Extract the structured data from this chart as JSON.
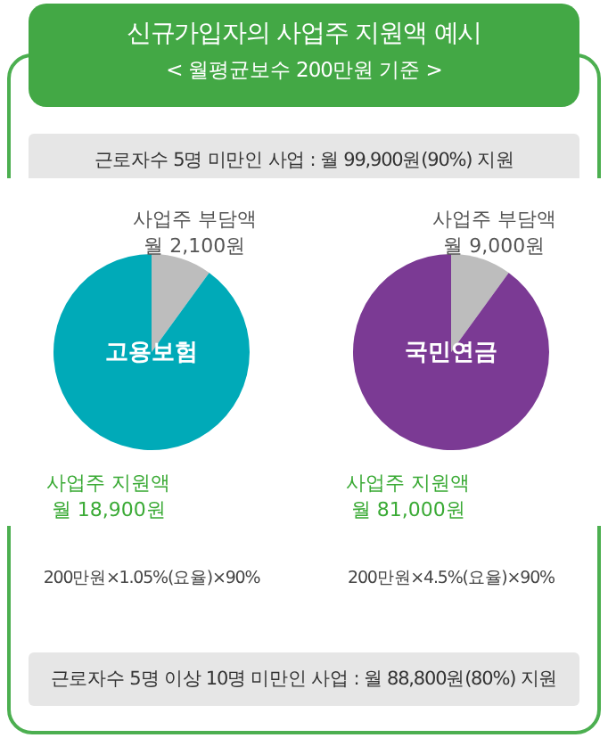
{
  "chart_data": [
    {
      "type": "other",
      "title": "신규가입자의 사업주 지원액 예시",
      "subtitle": "< 월평균보수 200만원 기준 >",
      "annotations": [
        "근로자수 5명 미만인 사업 : 월 99,900원(90%) 지원"
      ]
    },
    {
      "type": "pie",
      "title": "고용보험",
      "categories": [
        "사업주 부담액",
        "사업주 지원액"
      ],
      "values": [
        2100,
        18900
      ],
      "value_labels": [
        "월 2,100원",
        "월 18,900원"
      ],
      "colors": [
        "#bdbdbd",
        "#00aab8"
      ],
      "annotations": [
        "200만원×1.05%(요율)×90%"
      ]
    },
    {
      "type": "pie",
      "title": "국민연금",
      "categories": [
        "사업주 부담액",
        "사업주 지원액"
      ],
      "values": [
        9000,
        81000
      ],
      "value_labels": [
        "월 9,000원",
        "월 81,000원"
      ],
      "colors": [
        "#bdbdbd",
        "#7b3a94"
      ],
      "annotations": [
        "200만원×4.5%(요율)×90%"
      ]
    },
    {
      "type": "other",
      "annotations": [
        "근로자수 5명 이상 10명 미만인 사업 : 월 88,800원(80%) 지원"
      ]
    }
  ]
}
